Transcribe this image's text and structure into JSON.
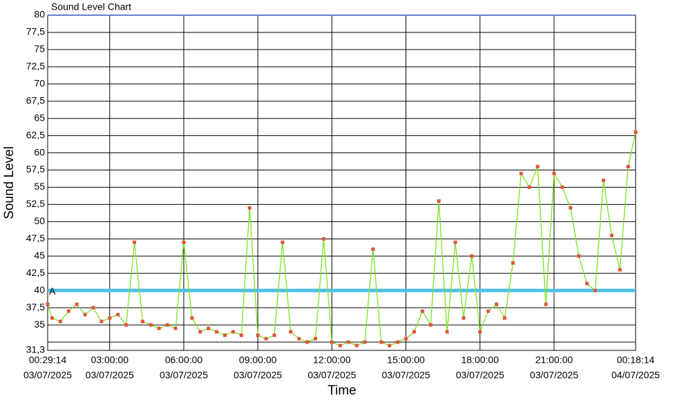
{
  "chart_data": {
    "type": "line",
    "title": "Sound Level Chart",
    "x_label": "Time",
    "y_label": "Sound Level",
    "x": [
      "03/07/2025 00:29:14",
      "03/07/2025 00:40",
      "03/07/2025 01:00",
      "03/07/2025 01:20",
      "03/07/2025 01:40",
      "03/07/2025 02:00",
      "03/07/2025 02:20",
      "03/07/2025 02:40",
      "03/07/2025 03:00",
      "03/07/2025 03:20",
      "03/07/2025 03:40",
      "03/07/2025 04:00",
      "03/07/2025 04:20",
      "03/07/2025 04:40",
      "03/07/2025 05:00",
      "03/07/2025 05:20",
      "03/07/2025 05:40",
      "03/07/2025 06:00",
      "03/07/2025 06:20",
      "03/07/2025 06:40",
      "03/07/2025 07:00",
      "03/07/2025 07:20",
      "03/07/2025 07:40",
      "03/07/2025 08:00",
      "03/07/2025 08:20",
      "03/07/2025 08:40",
      "03/07/2025 09:00",
      "03/07/2025 09:20",
      "03/07/2025 09:40",
      "03/07/2025 10:00",
      "03/07/2025 10:20",
      "03/07/2025 10:40",
      "03/07/2025 11:00",
      "03/07/2025 11:20",
      "03/07/2025 11:40",
      "03/07/2025 12:00",
      "03/07/2025 12:20",
      "03/07/2025 12:40",
      "03/07/2025 13:00",
      "03/07/2025 13:20",
      "03/07/2025 13:40",
      "03/07/2025 14:00",
      "03/07/2025 14:20",
      "03/07/2025 14:40",
      "03/07/2025 15:00",
      "03/07/2025 15:20",
      "03/07/2025 15:40",
      "03/07/2025 16:00",
      "03/07/2025 16:20",
      "03/07/2025 16:40",
      "03/07/2025 17:00",
      "03/07/2025 17:20",
      "03/07/2025 17:40",
      "03/07/2025 18:00",
      "03/07/2025 18:20",
      "03/07/2025 18:40",
      "03/07/2025 19:00",
      "03/07/2025 19:20",
      "03/07/2025 19:40",
      "03/07/2025 20:00",
      "03/07/2025 20:20",
      "03/07/2025 20:40",
      "03/07/2025 21:00",
      "03/07/2025 21:20",
      "03/07/2025 21:40",
      "03/07/2025 22:00",
      "03/07/2025 22:20",
      "03/07/2025 22:40",
      "03/07/2025 23:00",
      "03/07/2025 23:20",
      "03/07/2025 23:40",
      "04/07/2025 00:00",
      "04/07/2025 00:18:14"
    ],
    "series": [
      {
        "name": "Sound Level",
        "color": "#7ce31f",
        "marker_color": "#e0553a",
        "values": [
          38,
          36,
          35.5,
          37,
          38,
          36.5,
          37.5,
          35.5,
          36,
          36.5,
          35,
          47,
          35.5,
          35,
          34.5,
          35,
          34.5,
          47,
          36,
          34,
          34.5,
          34,
          33.5,
          34,
          33.5,
          52,
          33.5,
          33,
          33.5,
          47,
          34,
          33,
          32.5,
          33,
          47.5,
          32.5,
          32,
          32.5,
          32,
          32.5,
          46,
          32.5,
          32,
          32.5,
          33,
          34,
          37,
          35,
          53,
          34,
          47,
          36,
          45,
          34,
          37,
          38,
          36,
          44,
          57,
          55,
          58,
          38,
          57,
          55,
          52,
          45,
          41,
          40,
          56,
          48,
          43,
          58,
          63
        ]
      }
    ],
    "xlim": [
      "03/07/2025 00:29:14",
      "04/07/2025 00:18:14"
    ],
    "xticks": [
      {
        "time": "00:29:14",
        "date": "03/07/2025"
      },
      {
        "time": "03:00:00",
        "date": "03/07/2025"
      },
      {
        "time": "06:00:00",
        "date": "03/07/2025"
      },
      {
        "time": "09:00:00",
        "date": "03/07/2025"
      },
      {
        "time": "12:00:00",
        "date": "03/07/2025"
      },
      {
        "time": "15:00:00",
        "date": "03/07/2025"
      },
      {
        "time": "18:00:00",
        "date": "03/07/2025"
      },
      {
        "time": "21:00:00",
        "date": "03/07/2025"
      },
      {
        "time": "00:18:14",
        "date": "04/07/2025"
      }
    ],
    "ylim": [
      31.3,
      80
    ],
    "yticks": [
      {
        "value": 31.3,
        "label": "31,3"
      },
      {
        "value": 32.5,
        "label": null
      },
      35,
      {
        "value": 37.5,
        "label": "37,5"
      },
      40,
      {
        "value": 42.5,
        "label": "42,5"
      },
      45,
      {
        "value": 47.5,
        "label": "47,5"
      },
      50,
      {
        "value": 52.5,
        "label": "52,5"
      },
      55,
      {
        "value": 57.5,
        "label": "57,5"
      },
      60,
      {
        "value": 62.5,
        "label": "62,5"
      },
      65,
      {
        "value": 67.5,
        "label": "67,5"
      },
      70,
      {
        "value": 72.5,
        "label": "72,5"
      },
      75,
      {
        "value": 77.5,
        "label": "77,5"
      },
      80
    ],
    "threshold": {
      "value": 40,
      "label": "A",
      "color": "#4dbfea"
    },
    "grid": true
  }
}
